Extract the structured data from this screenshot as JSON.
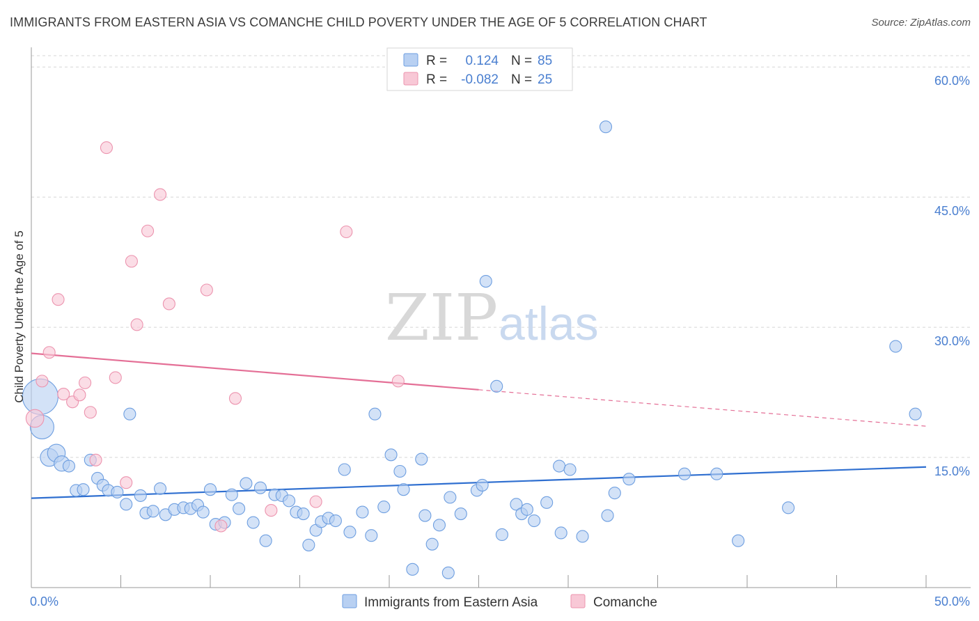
{
  "title": "IMMIGRANTS FROM EASTERN ASIA VS COMANCHE CHILD POVERTY UNDER THE AGE OF 5 CORRELATION CHART",
  "source": "Source: ZipAtlas.com",
  "watermark": {
    "zip": "ZIP",
    "atlas": "atlas"
  },
  "colors": {
    "blue_fill": "#b8d0f2",
    "blue_stroke": "#6d9ee0",
    "blue_line": "#2f6fd0",
    "pink_fill": "#f8c8d6",
    "pink_stroke": "#ec93ae",
    "pink_line": "#e46f96",
    "grid": "#d5d5d5",
    "accent_text": "#4a7fd0"
  },
  "legend": {
    "rows": [
      {
        "r_label": "R =",
        "r_value": "0.124",
        "n_label": "N =",
        "n_value": "85",
        "color": "blue"
      },
      {
        "r_label": "R =",
        "r_value": "-0.082",
        "n_label": "N =",
        "n_value": "25",
        "color": "pink"
      }
    ]
  },
  "chart_data": {
    "type": "scatter",
    "title": "IMMIGRANTS FROM EASTERN ASIA VS COMANCHE CHILD POVERTY UNDER THE AGE OF 5 CORRELATION CHART",
    "xlabel": "",
    "ylabel": "Child Poverty Under the Age of 5",
    "xlim": [
      0,
      50
    ],
    "ylim": [
      0,
      60
    ],
    "x_tick_labels": [
      "0.0%",
      "50.0%"
    ],
    "y_ticks": [
      15,
      30,
      45,
      60
    ],
    "y_tick_labels": [
      "15.0%",
      "30.0%",
      "45.0%",
      "60.0%"
    ],
    "grid": "horizontal dashed",
    "legend_position": "top-center",
    "series": [
      {
        "name": "Immigrants from Eastern Asia",
        "color": "blue",
        "trend": {
          "x": [
            0,
            50
          ],
          "y": [
            10.3,
            13.9
          ],
          "solid_until": 50
        },
        "points": [
          [
            0.5,
            22.0,
            3
          ],
          [
            0.6,
            18.5,
            2
          ],
          [
            1.0,
            15.0,
            1.5
          ],
          [
            1.4,
            15.5,
            1.5
          ],
          [
            1.7,
            14.3,
            1.3
          ],
          [
            2.1,
            14.0,
            1
          ],
          [
            2.5,
            11.2,
            1
          ],
          [
            2.9,
            11.3,
            1
          ],
          [
            3.3,
            14.7,
            1
          ],
          [
            3.7,
            12.6,
            1
          ],
          [
            4.0,
            11.8,
            1
          ],
          [
            4.3,
            11.2,
            1
          ],
          [
            4.8,
            11.0,
            1
          ],
          [
            5.3,
            9.6,
            1
          ],
          [
            5.5,
            20.0,
            1
          ],
          [
            6.1,
            10.6,
            1
          ],
          [
            6.4,
            8.6,
            1
          ],
          [
            6.8,
            8.8,
            1
          ],
          [
            7.2,
            11.4,
            1
          ],
          [
            7.5,
            8.4,
            1
          ],
          [
            8.0,
            9.0,
            1
          ],
          [
            8.5,
            9.2,
            1
          ],
          [
            8.9,
            9.1,
            1
          ],
          [
            9.3,
            9.5,
            1
          ],
          [
            9.6,
            8.7,
            1
          ],
          [
            10.0,
            11.3,
            1
          ],
          [
            10.3,
            7.3,
            1
          ],
          [
            10.8,
            7.5,
            1
          ],
          [
            11.2,
            10.7,
            1
          ],
          [
            11.6,
            9.1,
            1
          ],
          [
            12.0,
            12.0,
            1
          ],
          [
            12.4,
            7.5,
            1
          ],
          [
            12.8,
            11.5,
            1
          ],
          [
            13.1,
            5.4,
            1
          ],
          [
            13.6,
            10.7,
            1
          ],
          [
            14.0,
            10.6,
            1
          ],
          [
            14.4,
            10.0,
            1
          ],
          [
            14.8,
            8.7,
            1
          ],
          [
            15.2,
            8.5,
            1
          ],
          [
            15.5,
            4.9,
            1
          ],
          [
            15.9,
            6.6,
            1
          ],
          [
            16.2,
            7.6,
            1
          ],
          [
            16.6,
            8.0,
            1
          ],
          [
            17.0,
            7.7,
            1
          ],
          [
            17.5,
            13.6,
            1
          ],
          [
            17.8,
            6.4,
            1
          ],
          [
            18.5,
            8.7,
            1
          ],
          [
            19.0,
            6.0,
            1
          ],
          [
            19.2,
            20.0,
            1
          ],
          [
            19.7,
            9.3,
            1
          ],
          [
            20.1,
            15.3,
            1
          ],
          [
            20.6,
            13.4,
            1
          ],
          [
            20.8,
            11.3,
            1
          ],
          [
            21.3,
            2.1,
            1
          ],
          [
            21.8,
            14.8,
            1
          ],
          [
            22.0,
            8.3,
            1
          ],
          [
            22.4,
            5.0,
            1
          ],
          [
            22.8,
            7.2,
            1
          ],
          [
            23.3,
            1.7,
            1
          ],
          [
            23.4,
            10.4,
            1
          ],
          [
            24.0,
            8.5,
            1
          ],
          [
            24.9,
            11.2,
            1
          ],
          [
            25.2,
            11.8,
            1
          ],
          [
            25.4,
            35.3,
            1
          ],
          [
            26.0,
            23.2,
            1
          ],
          [
            26.3,
            6.1,
            1
          ],
          [
            27.1,
            9.6,
            1
          ],
          [
            27.4,
            8.5,
            1
          ],
          [
            27.7,
            9.0,
            1
          ],
          [
            28.1,
            7.7,
            1
          ],
          [
            28.8,
            9.8,
            1
          ],
          [
            29.5,
            14.0,
            1
          ],
          [
            29.6,
            6.3,
            1
          ],
          [
            30.1,
            13.6,
            1
          ],
          [
            30.8,
            5.9,
            1
          ],
          [
            32.1,
            53.1,
            1
          ],
          [
            32.2,
            8.3,
            1
          ],
          [
            32.6,
            10.9,
            1
          ],
          [
            33.4,
            12.5,
            1
          ],
          [
            36.5,
            13.1,
            1
          ],
          [
            38.3,
            13.1,
            1
          ],
          [
            39.5,
            5.4,
            1
          ],
          [
            42.3,
            9.2,
            1
          ],
          [
            48.3,
            27.8,
            1
          ],
          [
            49.4,
            20.0,
            1
          ]
        ]
      },
      {
        "name": "Comanche",
        "color": "pink",
        "trend": {
          "x": [
            0,
            50
          ],
          "y": [
            27.0,
            18.6
          ],
          "solid_until": 25
        },
        "points": [
          [
            0.2,
            19.5,
            1.5
          ],
          [
            0.6,
            23.8,
            1
          ],
          [
            1.0,
            27.1,
            1
          ],
          [
            1.5,
            33.2,
            1
          ],
          [
            1.8,
            22.3,
            1
          ],
          [
            2.3,
            21.4,
            1
          ],
          [
            2.7,
            22.2,
            1
          ],
          [
            3.0,
            23.6,
            1
          ],
          [
            3.3,
            20.2,
            1
          ],
          [
            3.6,
            14.7,
            1
          ],
          [
            4.2,
            50.7,
            1
          ],
          [
            4.7,
            24.2,
            1
          ],
          [
            5.3,
            12.1,
            1
          ],
          [
            5.6,
            37.6,
            1
          ],
          [
            5.9,
            30.3,
            1
          ],
          [
            6.5,
            41.1,
            1
          ],
          [
            7.2,
            45.3,
            1
          ],
          [
            7.7,
            32.7,
            1
          ],
          [
            9.8,
            34.3,
            1
          ],
          [
            10.6,
            7.1,
            1
          ],
          [
            11.4,
            21.8,
            1
          ],
          [
            13.4,
            8.9,
            1
          ],
          [
            15.9,
            9.9,
            1
          ],
          [
            17.6,
            41.0,
            1
          ],
          [
            20.5,
            23.8,
            1
          ]
        ]
      }
    ]
  },
  "bottom_legend": [
    {
      "label": "Immigrants from Eastern Asia",
      "color": "blue"
    },
    {
      "label": "Comanche",
      "color": "pink"
    }
  ]
}
